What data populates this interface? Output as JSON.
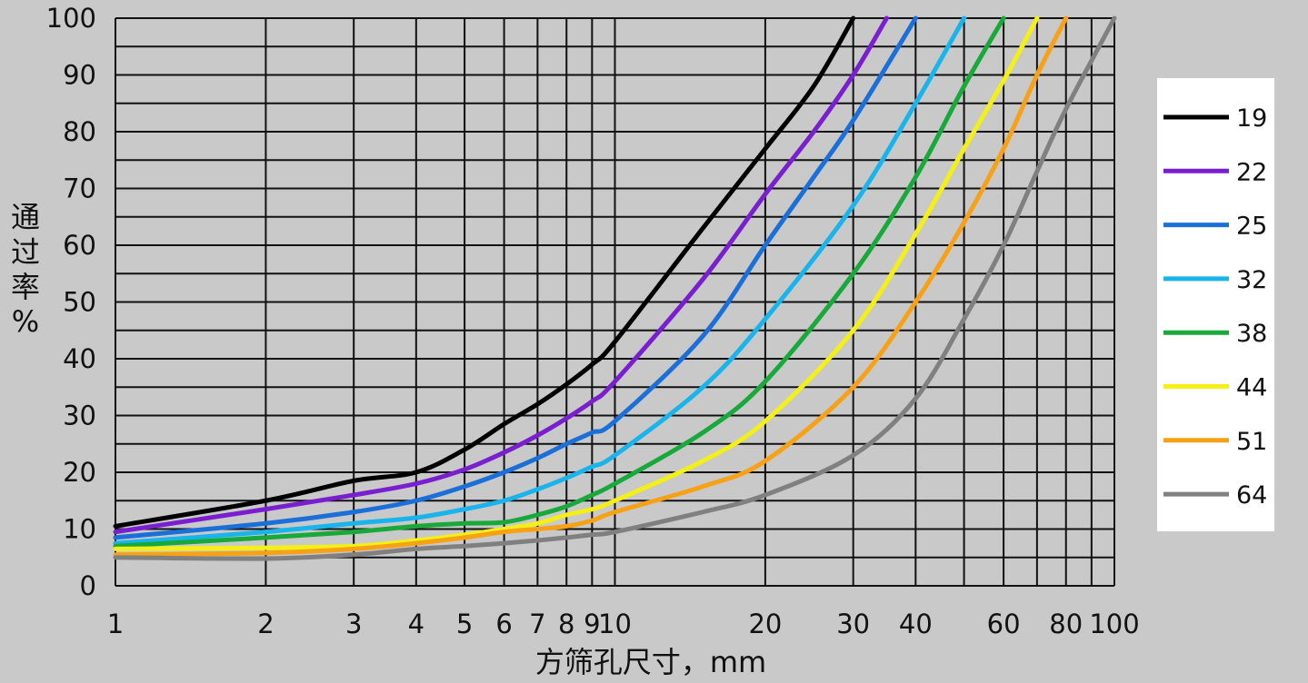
{
  "chart_data": {
    "type": "line",
    "title": "",
    "xlabel": "方筛孔尺寸，mm",
    "ylabel": "通过率%",
    "xscale": "log",
    "xlim": [
      1,
      100
    ],
    "ylim": [
      0,
      100
    ],
    "grid": true,
    "legend_position": "right",
    "x_tick_labels": [
      "1",
      "2",
      "3",
      "4",
      "5",
      "6",
      "7",
      "8",
      "9",
      "10",
      "20",
      "30",
      "40",
      "60",
      "80",
      "100"
    ],
    "y_tick_labels": [
      "0",
      "10",
      "20",
      "30",
      "40",
      "50",
      "60",
      "70",
      "80",
      "90",
      "100"
    ],
    "series": [
      {
        "name": "19",
        "color": "#000000",
        "points": [
          [
            1,
            10.5
          ],
          [
            2,
            15
          ],
          [
            3,
            18.5
          ],
          [
            4,
            20
          ],
          [
            5,
            24
          ],
          [
            6,
            28.5
          ],
          [
            7,
            32
          ],
          [
            8,
            35.5
          ],
          [
            9,
            39
          ],
          [
            10,
            43
          ],
          [
            15,
            63
          ],
          [
            20,
            77
          ],
          [
            25,
            88
          ],
          [
            30,
            100
          ]
        ]
      },
      {
        "name": "22",
        "color": "#7a1fd0",
        "points": [
          [
            1,
            9.5
          ],
          [
            2,
            13.5
          ],
          [
            3,
            16
          ],
          [
            4,
            18
          ],
          [
            5,
            20.5
          ],
          [
            6,
            23.5
          ],
          [
            7,
            26.5
          ],
          [
            8,
            29.5
          ],
          [
            9,
            32.5
          ],
          [
            10,
            36
          ],
          [
            15,
            54
          ],
          [
            20,
            69
          ],
          [
            25,
            80
          ],
          [
            30,
            90
          ],
          [
            35,
            100
          ]
        ]
      },
      {
        "name": "25",
        "color": "#1a6fd8",
        "points": [
          [
            1,
            8.5
          ],
          [
            2,
            11
          ],
          [
            3,
            13
          ],
          [
            4,
            15
          ],
          [
            5,
            17.5
          ],
          [
            6,
            20
          ],
          [
            7,
            22.5
          ],
          [
            8,
            25
          ],
          [
            9,
            27
          ],
          [
            10,
            29
          ],
          [
            15,
            44
          ],
          [
            20,
            60
          ],
          [
            25,
            72
          ],
          [
            30,
            82
          ],
          [
            40,
            100
          ]
        ]
      },
      {
        "name": "32",
        "color": "#1ab4ec",
        "points": [
          [
            1,
            7.5
          ],
          [
            2,
            9.5
          ],
          [
            3,
            11
          ],
          [
            4,
            12
          ],
          [
            5,
            13.5
          ],
          [
            6,
            15
          ],
          [
            7,
            17
          ],
          [
            8,
            19
          ],
          [
            9,
            21
          ],
          [
            10,
            23
          ],
          [
            15,
            35
          ],
          [
            20,
            47
          ],
          [
            30,
            67
          ],
          [
            40,
            85
          ],
          [
            50,
            100
          ]
        ]
      },
      {
        "name": "38",
        "color": "#18a93a",
        "points": [
          [
            1,
            7
          ],
          [
            2,
            8.5
          ],
          [
            3,
            9.5
          ],
          [
            4,
            10.5
          ],
          [
            5,
            11
          ],
          [
            6,
            11.2
          ],
          [
            7,
            12.5
          ],
          [
            8,
            14
          ],
          [
            9,
            16
          ],
          [
            10,
            18
          ],
          [
            15,
            27
          ],
          [
            20,
            36
          ],
          [
            30,
            55
          ],
          [
            40,
            72
          ],
          [
            50,
            88
          ],
          [
            60,
            100
          ]
        ]
      },
      {
        "name": "44",
        "color": "#f3ef17",
        "points": [
          [
            1,
            6.5
          ],
          [
            2,
            6.7
          ],
          [
            3,
            7
          ],
          [
            4,
            8
          ],
          [
            5,
            9
          ],
          [
            6,
            10
          ],
          [
            7,
            11
          ],
          [
            8,
            12.5
          ],
          [
            9,
            13.5
          ],
          [
            10,
            15
          ],
          [
            15,
            22
          ],
          [
            20,
            29
          ],
          [
            30,
            45
          ],
          [
            40,
            62
          ],
          [
            50,
            77
          ],
          [
            60,
            89
          ],
          [
            70,
            100
          ]
        ]
      },
      {
        "name": "51",
        "color": "#f7a117",
        "points": [
          [
            1,
            5.5
          ],
          [
            2,
            5.8
          ],
          [
            3,
            6.5
          ],
          [
            4,
            7.5
          ],
          [
            5,
            8.5
          ],
          [
            6,
            9.5
          ],
          [
            7,
            10
          ],
          [
            8,
            10.5
          ],
          [
            9,
            11.5
          ],
          [
            10,
            13
          ],
          [
            15,
            17.5
          ],
          [
            20,
            22
          ],
          [
            30,
            35
          ],
          [
            40,
            50
          ],
          [
            50,
            64
          ],
          [
            60,
            77
          ],
          [
            70,
            90
          ],
          [
            80,
            100
          ]
        ]
      },
      {
        "name": "64",
        "color": "#808080",
        "points": [
          [
            1,
            5
          ],
          [
            2,
            4.8
          ],
          [
            3,
            5.5
          ],
          [
            4,
            6.5
          ],
          [
            5,
            7
          ],
          [
            6,
            7.5
          ],
          [
            7,
            8
          ],
          [
            8,
            8.5
          ],
          [
            9,
            9
          ],
          [
            10,
            9.5
          ],
          [
            15,
            13
          ],
          [
            20,
            16
          ],
          [
            30,
            23
          ],
          [
            40,
            33
          ],
          [
            50,
            47
          ],
          [
            60,
            60
          ],
          [
            70,
            73
          ],
          [
            80,
            84
          ],
          [
            100,
            100
          ]
        ]
      }
    ]
  }
}
